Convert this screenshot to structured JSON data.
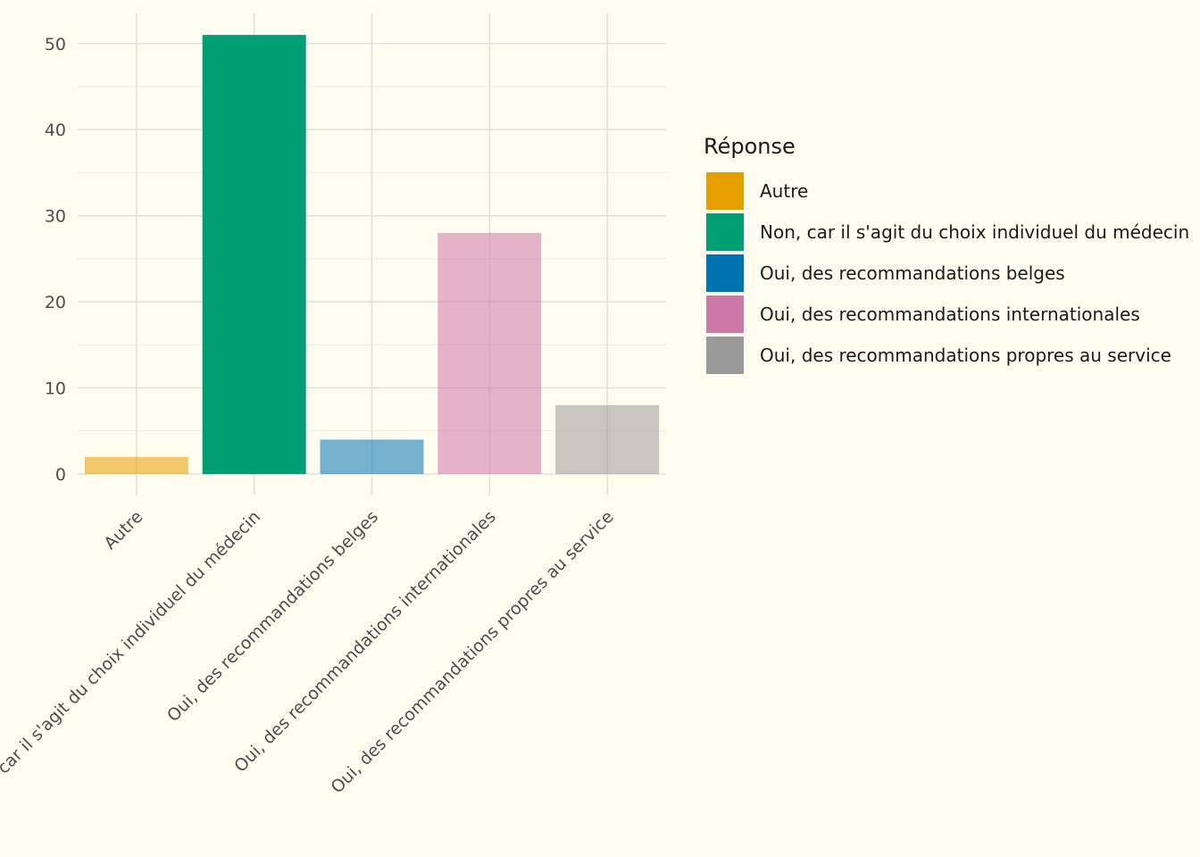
{
  "chart_data": {
    "type": "bar",
    "categories": [
      "Autre",
      "Non, car il s'agit du choix individuel du médecin",
      "Oui, des recommandations belges",
      "Oui, des recommandations internationales",
      "Oui, des recommandations propres au service"
    ],
    "values": [
      2,
      51,
      4,
      28,
      8
    ],
    "colors": [
      "#E69F00",
      "#009E73",
      "#0072B2",
      "#CC79A7",
      "#999999"
    ],
    "xlabel": "",
    "ylabel": "",
    "yticks": [
      0,
      10,
      20,
      30,
      40,
      50
    ],
    "ylim": [
      0,
      53.5
    ],
    "grid": true,
    "legend": {
      "title": "Réponse",
      "placement": "right",
      "entries": [
        "Autre",
        "Non, car il s'agit du choix individuel du médecin",
        "Oui, des recommandations belges",
        "Oui, des recommandations internationales",
        "Oui, des recommandations propres au service"
      ]
    }
  }
}
